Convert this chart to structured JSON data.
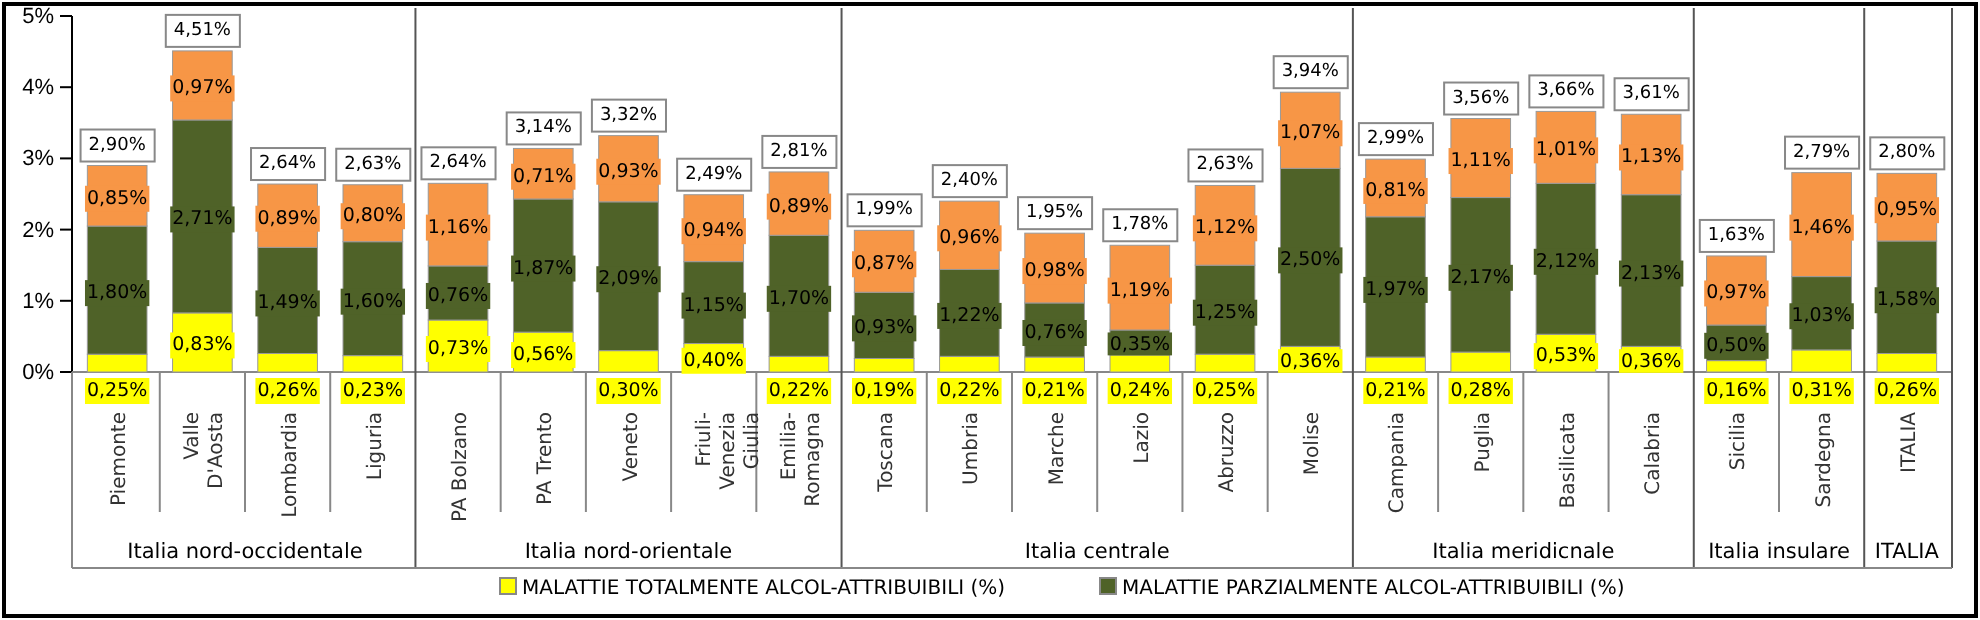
{
  "chart_data": {
    "type": "bar",
    "stacked": true,
    "categories": [
      "Piemonte",
      "Valle D'Aosta",
      "Lombardia",
      "Liguria",
      "PA Bolzano",
      "PA Trento",
      "Veneto",
      "Friuli-Venezia Giulia",
      "Emilia-Romagna",
      "Toscana",
      "Umbria",
      "Marche",
      "Lazio",
      "Abruzzo",
      "Molise",
      "Campania",
      "Puglia",
      "Basilicata",
      "Calabria",
      "Sicilia",
      "Sardegna",
      "ITALIA"
    ],
    "series": [
      {
        "name": "MALATTIE TOTALMENTE  ALCOL-ATTRIBUIBILI (%)",
        "color": "#ffff00",
        "values": [
          0.25,
          0.83,
          0.26,
          0.23,
          0.73,
          0.56,
          0.3,
          0.4,
          0.22,
          0.19,
          0.22,
          0.21,
          0.24,
          0.25,
          0.36,
          0.21,
          0.28,
          0.53,
          0.36,
          0.16,
          0.31,
          0.26
        ],
        "value_labels": [
          "0,25%",
          "0,83%",
          "0,26%",
          "0,23%",
          "0,73%",
          "0,56%",
          "0,30%",
          "0,40%",
          "0,22%",
          "0,19%",
          "0,22%",
          "0,21%",
          "0,24%",
          "0,25%",
          "0,36%",
          "0,21%",
          "0,28%",
          "0,53%",
          "0,36%",
          "0,16%",
          "0,31%",
          "0,26%"
        ]
      },
      {
        "name": "MALATTIE PARZIALMENTE  ALCOL-ATTRIBUIBILI (%)",
        "color": "#4f6228",
        "values": [
          1.8,
          2.71,
          1.49,
          1.6,
          0.76,
          1.87,
          2.09,
          1.15,
          1.7,
          0.93,
          1.22,
          0.76,
          0.35,
          1.25,
          2.5,
          1.97,
          2.17,
          2.12,
          2.13,
          0.5,
          1.03,
          1.58
        ],
        "value_labels": [
          "1,80%",
          "2,71%",
          "1,49%",
          "1,60%",
          "0,76%",
          "1,87%",
          "2,09%",
          "1,15%",
          "1,70%",
          "0,93%",
          "1,22%",
          "0,76%",
          "0,35%",
          "1,25%",
          "2,50%",
          "1,97%",
          "2,17%",
          "2,12%",
          "2,13%",
          "0,50%",
          "1,03%",
          "1,58%"
        ]
      },
      {
        "color": "#f79646",
        "values": [
          0.85,
          0.97,
          0.89,
          0.8,
          1.16,
          0.71,
          0.93,
          0.94,
          0.89,
          0.87,
          0.96,
          0.98,
          1.19,
          1.12,
          1.07,
          0.81,
          1.11,
          1.01,
          1.13,
          0.97,
          1.46,
          0.95
        ],
        "value_labels": [
          "0,85%",
          "0,97%",
          "0,89%",
          "0,80%",
          "1,16%",
          "0,71%",
          "0,93%",
          "0,94%",
          "0,89%",
          "0,87%",
          "0,96%",
          "0,98%",
          "1,19%",
          "1,12%",
          "1,07%",
          "0,81%",
          "1,11%",
          "1,01%",
          "1,13%",
          "0,97%",
          "1,46%",
          "0,95%"
        ]
      }
    ],
    "totals": [
      "2,90%",
      "4,51%",
      "2,64%",
      "2,63%",
      "2,64%",
      "3,14%",
      "3,32%",
      "2,49%",
      "2,81%",
      "1,99%",
      "2,40%",
      "1,95%",
      "1,78%",
      "2,63%",
      "3,94%",
      "2,99%",
      "3,56%",
      "3,66%",
      "3,61%",
      "1,63%",
      "2,79%",
      "2,80%"
    ],
    "annotations": [
      "Italia nord-occidentale",
      "Italia nord-orientale",
      "Italia centrale",
      "Italia meridicnale",
      "Italia insulare",
      "ITALIA"
    ],
    "ylim": [
      0,
      5
    ],
    "yticks": [
      {
        "value": 0,
        "label": "0%"
      },
      {
        "value": 1,
        "label": "1%"
      },
      {
        "value": 2,
        "label": "2%"
      },
      {
        "value": 3,
        "label": "3%"
      },
      {
        "value": 4,
        "label": "4%"
      },
      {
        "value": 5,
        "label": "5%"
      }
    ],
    "grid": false,
    "legend": "bottom"
  }
}
